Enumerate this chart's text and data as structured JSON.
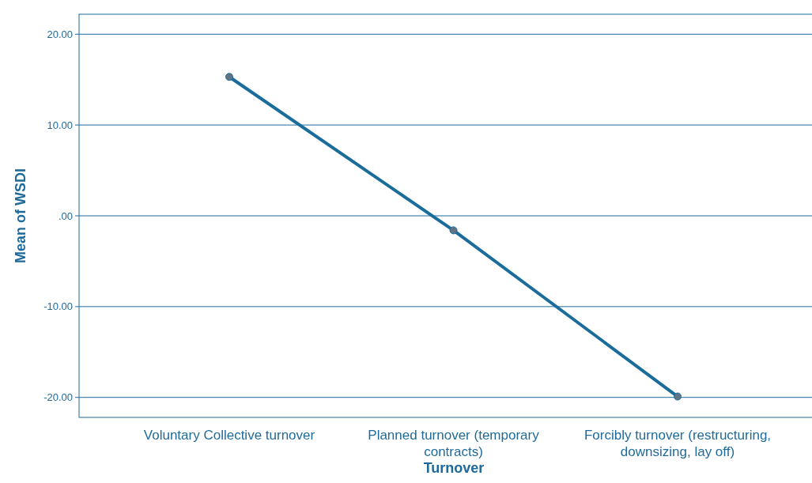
{
  "chart_data": {
    "type": "line",
    "xlabel": "Turnover",
    "ylabel": "Mean of WSDI",
    "categories": [
      "Voluntary Collective turnover",
      "Planned turnover (temporary contracts)",
      "Forcibly turnover (restructuring, downsizing, lay off)"
    ],
    "series": [
      {
        "color": "#1a6c9c",
        "values": [
          15.3,
          -1.6,
          -19.9
        ]
      }
    ],
    "ylim": [
      -22.2,
      22.2
    ],
    "yticks": [
      {
        "value": -20,
        "label": "-20.00"
      },
      {
        "value": -10,
        "label": "-10.00"
      },
      {
        "value": 0,
        "label": ".00"
      },
      {
        "value": 10,
        "label": "10.00"
      },
      {
        "value": 20,
        "label": "20.00"
      }
    ],
    "grid": "y",
    "marker": "circle",
    "line_style": "solid"
  }
}
